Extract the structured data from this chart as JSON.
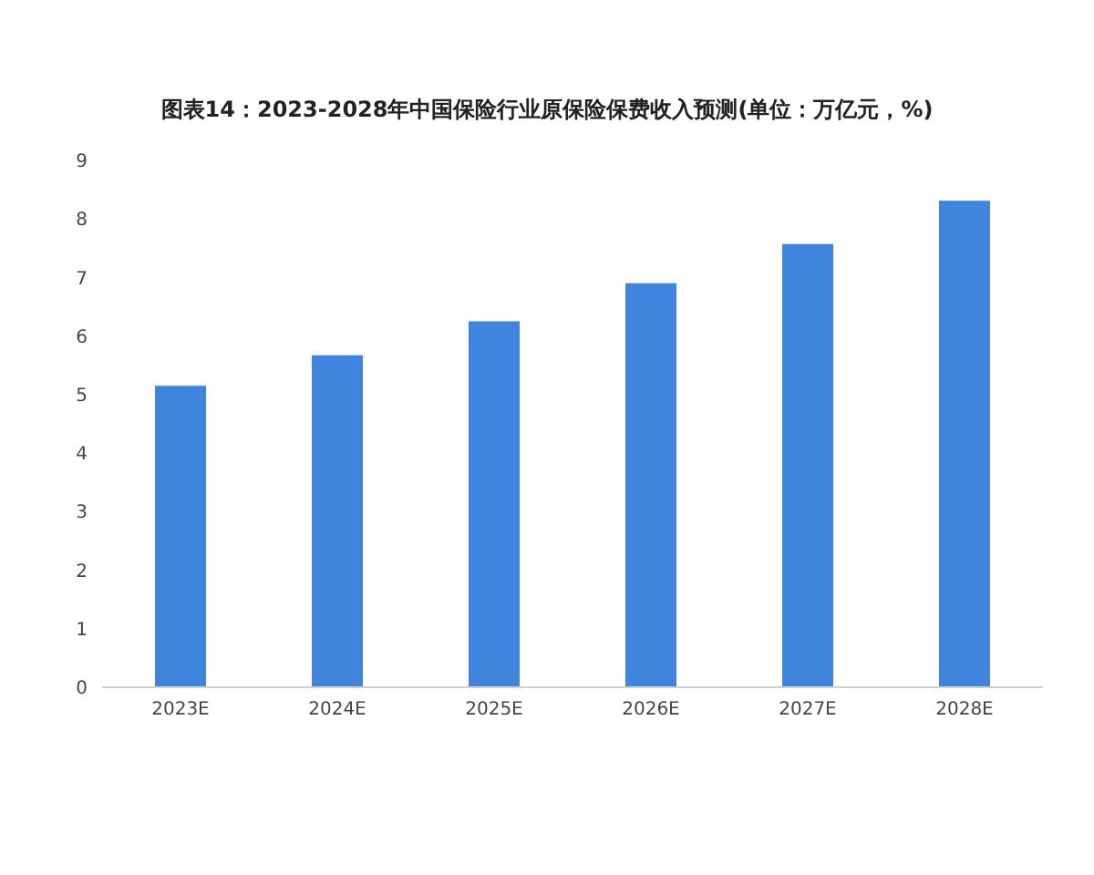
{
  "chart_data": {
    "type": "bar",
    "title": "图表14：2023-2028年中国保险行业原保险保费收入预测(单位：万亿元，%)",
    "categories": [
      "2023E",
      "2024E",
      "2025E",
      "2026E",
      "2027E",
      "2028E"
    ],
    "values": [
      5.15,
      5.67,
      6.25,
      6.9,
      7.57,
      8.31
    ],
    "color": "#3f85dd",
    "ylim": [
      0,
      9
    ],
    "yticks": [
      0,
      1,
      2,
      3,
      4,
      5,
      6,
      7,
      8,
      9
    ],
    "grid": false
  }
}
